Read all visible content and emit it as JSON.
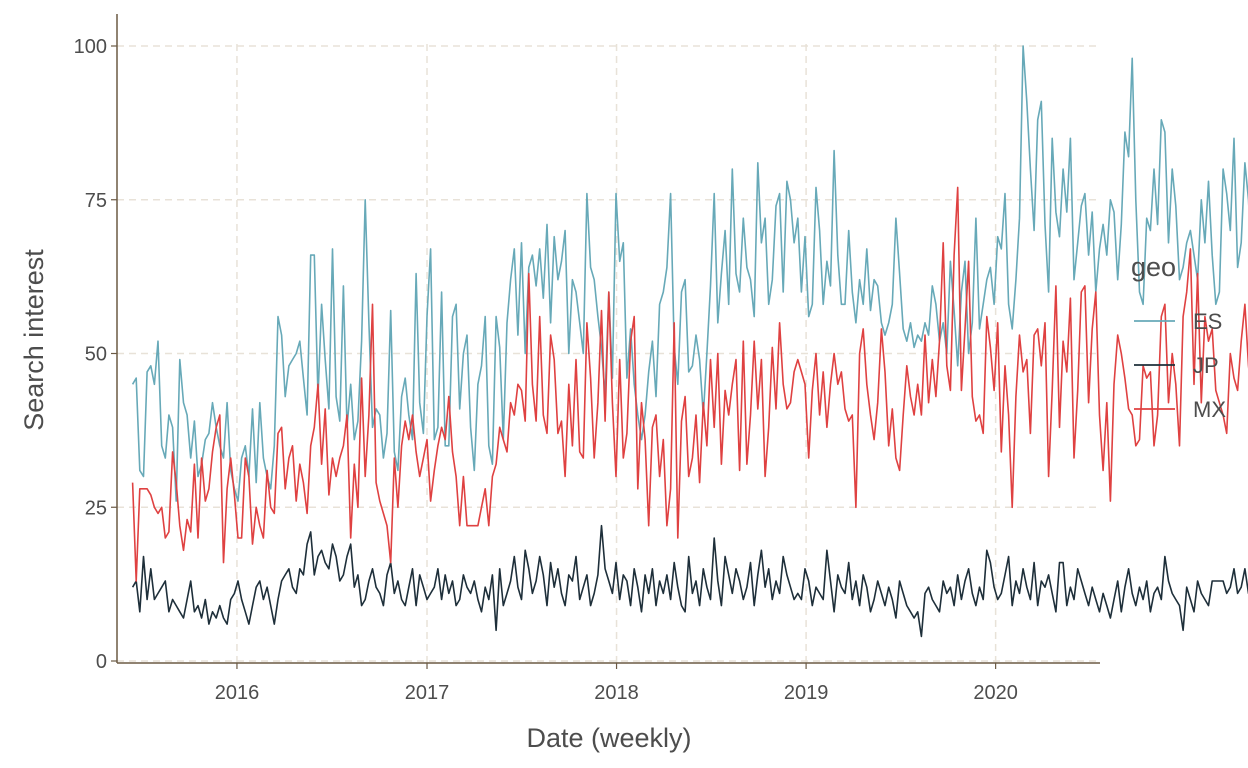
{
  "chart_data": {
    "type": "line",
    "title": "",
    "xlabel": "Date (weekly)",
    "ylabel": "Search interest",
    "x_start": "2015-06-14",
    "x_step_weeks": 1,
    "xlim": [
      "2015-05-15",
      "2020-07-20"
    ],
    "ylim": [
      0,
      100
    ],
    "x_ticks": [
      {
        "label": "2016",
        "date": "2016-01-01"
      },
      {
        "label": "2017",
        "date": "2017-01-01"
      },
      {
        "label": "2018",
        "date": "2018-01-01"
      },
      {
        "label": "2019",
        "date": "2019-01-01"
      },
      {
        "label": "2020",
        "date": "2020-01-01"
      }
    ],
    "y_ticks": [
      {
        "label": "0",
        "value": 0
      },
      {
        "label": "25",
        "value": 25
      },
      {
        "label": "50",
        "value": 50
      },
      {
        "label": "75",
        "value": 75
      },
      {
        "label": "100",
        "value": 100
      }
    ],
    "grid": true,
    "legend": {
      "title": "geo",
      "position": "right"
    },
    "series": [
      {
        "name": "ES",
        "color": "#67a9b8",
        "values": [
          45,
          46,
          31,
          30,
          47,
          48,
          45,
          52,
          35,
          33,
          40,
          38,
          26,
          49,
          42,
          40,
          33,
          39,
          30,
          32,
          36,
          37,
          42,
          38,
          35,
          33,
          42,
          31,
          28,
          26,
          33,
          35,
          30,
          41,
          29,
          42,
          33,
          30,
          28,
          35,
          56,
          53,
          43,
          48,
          49,
          50,
          52,
          46,
          40,
          66,
          66,
          43,
          58,
          49,
          41,
          67,
          43,
          39,
          61,
          38,
          45,
          36,
          39,
          52,
          75,
          55,
          38,
          41,
          40,
          33,
          37,
          57,
          34,
          31,
          43,
          46,
          40,
          36,
          63,
          42,
          37,
          56,
          67,
          36,
          38,
          60,
          35,
          35,
          56,
          58,
          41,
          50,
          53,
          38,
          31,
          45,
          48,
          56,
          35,
          32,
          56,
          51,
          36,
          55,
          62,
          67,
          53,
          68,
          50,
          64,
          66,
          61,
          67,
          59,
          71,
          55,
          69,
          62,
          65,
          70,
          50,
          62,
          60,
          55,
          50,
          76,
          64,
          62,
          56,
          51,
          43,
          60,
          46,
          76,
          65,
          68,
          46,
          54,
          45,
          40,
          36,
          40,
          47,
          52,
          43,
          58,
          60,
          64,
          76,
          51,
          45,
          60,
          62,
          47,
          48,
          53,
          49,
          40,
          50,
          61,
          76,
          55,
          63,
          70,
          58,
          80,
          63,
          60,
          72,
          64,
          62,
          56,
          81,
          68,
          72,
          58,
          62,
          74,
          76,
          60,
          78,
          75,
          68,
          72,
          60,
          69,
          56,
          58,
          77,
          70,
          58,
          65,
          61,
          83,
          66,
          58,
          58,
          70,
          60,
          55,
          62,
          58,
          67,
          57,
          62,
          61,
          55,
          53,
          55,
          58,
          72,
          63,
          54,
          52,
          55,
          51,
          53,
          52,
          55,
          53,
          61,
          58,
          52,
          55,
          50,
          65,
          57,
          48,
          60,
          65,
          50,
          55,
          72,
          54,
          58,
          62,
          64,
          58,
          69,
          67,
          76,
          58,
          54,
          62,
          72,
          100,
          91,
          80,
          70,
          88,
          91,
          71,
          60,
          85,
          73,
          69,
          80,
          73,
          85,
          62,
          68,
          74,
          76,
          66,
          73,
          60,
          67,
          71,
          66,
          75,
          73,
          62,
          71,
          86,
          82,
          98,
          75,
          60,
          58,
          72,
          70,
          80,
          71,
          88,
          86,
          68,
          80,
          74,
          62,
          64,
          68,
          70,
          66,
          62,
          75,
          68,
          78,
          66,
          58,
          60,
          80,
          76,
          70,
          85,
          64,
          68,
          81,
          75,
          63,
          63,
          86,
          65,
          70,
          64,
          78,
          62,
          52,
          76,
          76,
          57,
          61,
          64,
          71,
          83,
          84,
          70,
          72,
          60,
          74,
          85,
          76,
          72,
          75
        ]
      },
      {
        "name": "JP",
        "color": "#1e2f3a",
        "values": [
          12,
          13,
          8,
          17,
          10,
          15,
          10,
          11,
          12,
          13,
          8,
          10,
          9,
          8,
          7,
          10,
          13,
          8,
          9,
          7,
          10,
          6,
          8,
          7,
          9,
          7,
          6,
          10,
          11,
          13,
          10,
          8,
          6,
          9,
          12,
          13,
          10,
          12,
          9,
          6,
          10,
          13,
          14,
          15,
          12,
          11,
          15,
          14,
          19,
          21,
          14,
          17,
          18,
          16,
          15,
          19,
          17,
          13,
          14,
          17,
          19,
          12,
          14,
          9,
          10,
          13,
          15,
          12,
          11,
          9,
          14,
          16,
          11,
          13,
          10,
          9,
          12,
          15,
          9,
          14,
          12,
          10,
          11,
          12,
          15,
          10,
          14,
          11,
          13,
          9,
          10,
          14,
          12,
          11,
          13,
          10,
          8,
          12,
          10,
          14,
          5,
          15,
          9,
          11,
          13,
          17,
          12,
          10,
          18,
          15,
          11,
          13,
          17,
          14,
          9,
          16,
          12,
          15,
          11,
          9,
          14,
          13,
          17,
          10,
          12,
          14,
          9,
          11,
          14,
          22,
          15,
          13,
          11,
          16,
          10,
          14,
          13,
          9,
          15,
          12,
          8,
          14,
          11,
          15,
          9,
          13,
          11,
          14,
          10,
          16,
          12,
          9,
          8,
          17,
          11,
          13,
          9,
          15,
          12,
          10,
          20,
          13,
          9,
          17,
          14,
          11,
          15,
          13,
          10,
          12,
          16,
          9,
          14,
          18,
          12,
          15,
          10,
          13,
          11,
          17,
          14,
          12,
          10,
          11,
          10,
          15,
          13,
          9,
          12,
          11,
          10,
          18,
          13,
          8,
          14,
          12,
          11,
          16,
          10,
          13,
          9,
          14,
          12,
          8,
          10,
          13,
          11,
          9,
          12,
          10,
          7,
          13,
          11,
          9,
          8,
          7,
          8,
          4,
          11,
          12,
          10,
          9,
          8,
          13,
          11,
          12,
          9,
          14,
          10,
          13,
          15,
          11,
          9,
          12,
          10,
          18,
          16,
          12,
          10,
          11,
          14,
          17,
          9,
          13,
          11,
          15,
          12,
          10,
          16,
          9,
          13,
          12,
          14,
          11,
          8,
          16,
          16,
          9,
          12,
          10,
          15,
          13,
          11,
          9,
          12,
          10,
          8,
          11,
          9,
          7,
          10,
          13,
          8,
          12,
          15,
          11,
          9,
          12,
          10,
          13,
          8,
          11,
          12,
          10,
          17,
          13,
          11,
          10,
          9,
          5,
          12,
          10,
          8,
          13,
          11,
          10,
          9,
          13,
          13,
          13,
          13,
          11,
          12,
          15,
          11,
          12,
          15,
          11,
          15
        ]
      },
      {
        "name": "MX",
        "color": "#df4141",
        "values": [
          29,
          13,
          28,
          28,
          28,
          27,
          25,
          24,
          25,
          20,
          21,
          34,
          29,
          22,
          18,
          23,
          21,
          32,
          20,
          33,
          26,
          28,
          34,
          38,
          40,
          16,
          28,
          33,
          27,
          20,
          20,
          33,
          30,
          19,
          25,
          22,
          20,
          31,
          25,
          24,
          37,
          38,
          28,
          33,
          35,
          26,
          32,
          29,
          24,
          35,
          38,
          45,
          32,
          41,
          27,
          33,
          30,
          33,
          35,
          40,
          20,
          32,
          25,
          46,
          30,
          40,
          58,
          29,
          26,
          24,
          22,
          16,
          33,
          25,
          35,
          39,
          36,
          40,
          34,
          30,
          33,
          36,
          26,
          31,
          35,
          38,
          36,
          43,
          34,
          30,
          22,
          30,
          22,
          22,
          22,
          22,
          25,
          28,
          22,
          30,
          32,
          38,
          36,
          34,
          42,
          40,
          45,
          44,
          39,
          63,
          45,
          39,
          56,
          40,
          37,
          53,
          49,
          37,
          39,
          30,
          45,
          35,
          49,
          34,
          33,
          55,
          46,
          33,
          42,
          57,
          39,
          60,
          42,
          30,
          49,
          33,
          37,
          52,
          56,
          28,
          42,
          36,
          22,
          38,
          40,
          30,
          36,
          22,
          28,
          55,
          20,
          39,
          43,
          30,
          33,
          40,
          29,
          42,
          35,
          49,
          38,
          50,
          32,
          44,
          40,
          45,
          49,
          31,
          52,
          32,
          40,
          52,
          41,
          49,
          30,
          38,
          51,
          41,
          55,
          45,
          41,
          42,
          47,
          49,
          47,
          45,
          33,
          44,
          50,
          40,
          47,
          38,
          45,
          50,
          45,
          47,
          41,
          39,
          40,
          25,
          50,
          54,
          45,
          40,
          36,
          42,
          54,
          47,
          35,
          41,
          33,
          31,
          40,
          48,
          43,
          40,
          45,
          40,
          53,
          42,
          49,
          43,
          52,
          68,
          48,
          44,
          66,
          77,
          44,
          54,
          65,
          43,
          39,
          40,
          37,
          56,
          51,
          44,
          55,
          34,
          48,
          40,
          25,
          43,
          53,
          47,
          49,
          37,
          53,
          54,
          48,
          55,
          30,
          44,
          61,
          38,
          52,
          47,
          59,
          33,
          44,
          60,
          61,
          42,
          54,
          60,
          40,
          31,
          42,
          26,
          45,
          53,
          50,
          46,
          41,
          40,
          35,
          36,
          48,
          46,
          47,
          35,
          40,
          56,
          58,
          42,
          50,
          45,
          35,
          56,
          60,
          67,
          45,
          63,
          42,
          56,
          52,
          54,
          44,
          42,
          40,
          37,
          50,
          46,
          44,
          52,
          58,
          48,
          42,
          41,
          45,
          60,
          51,
          45,
          55,
          42
        ]
      }
    ]
  }
}
